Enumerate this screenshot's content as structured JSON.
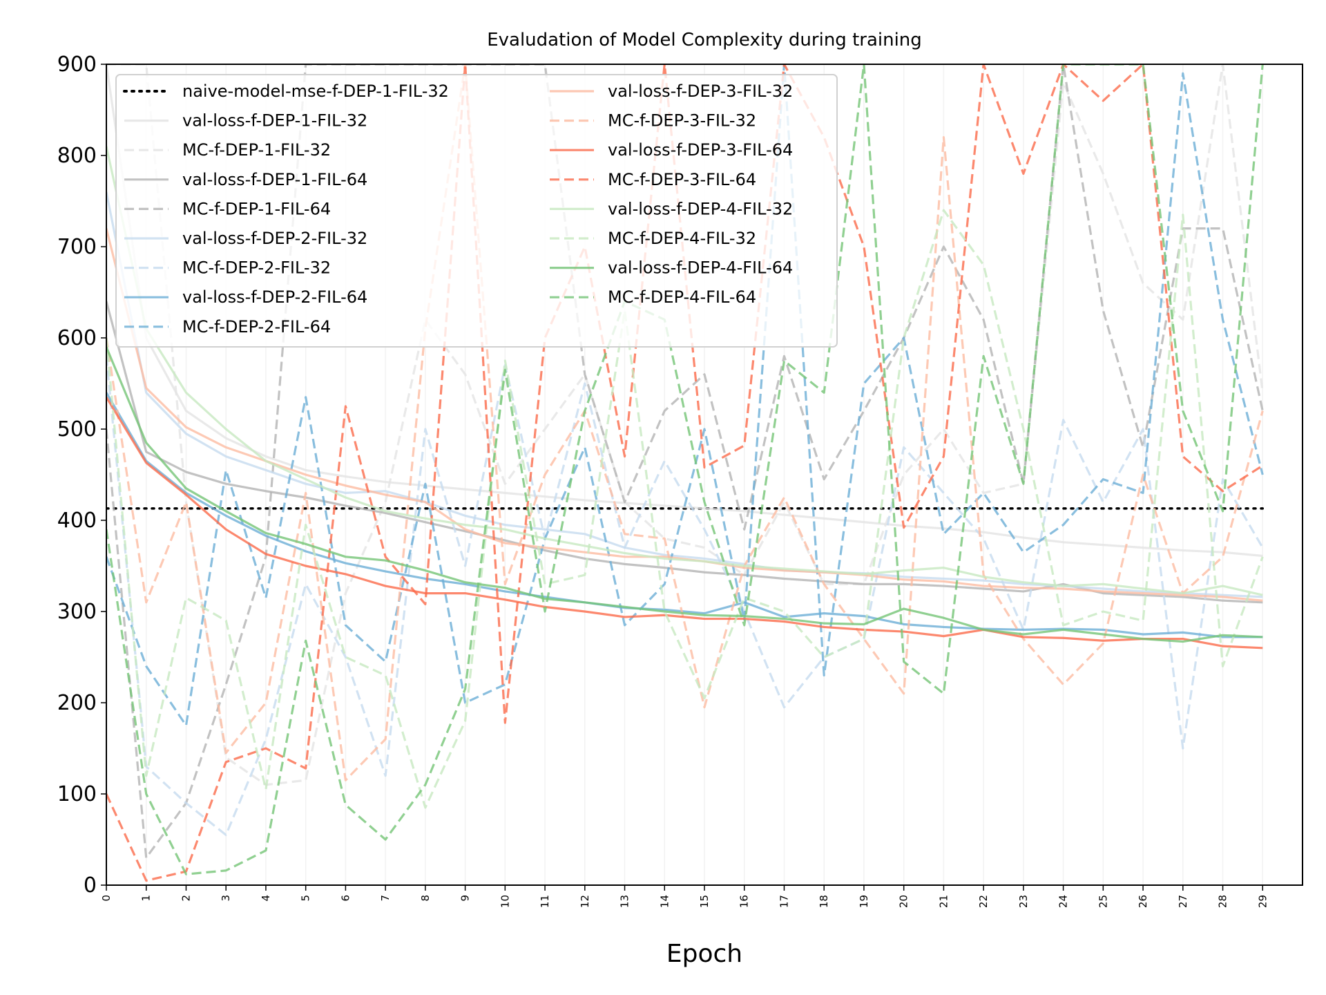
{
  "chart_data": {
    "type": "line",
    "title": "Evaludation of Model Complexity during training",
    "xlabel": "Epoch",
    "ylabel": "",
    "xlim": [
      0,
      30
    ],
    "ylim": [
      0,
      900
    ],
    "yticks": [
      0,
      100,
      200,
      300,
      400,
      500,
      600,
      700,
      800,
      900
    ],
    "xticks": [
      0,
      1,
      2,
      3,
      4,
      5,
      6,
      7,
      8,
      9,
      10,
      11,
      12,
      13,
      14,
      15,
      16,
      17,
      18,
      19,
      20,
      21,
      22,
      23,
      24,
      25,
      26,
      27,
      28,
      29
    ],
    "grid": "vertical-faint",
    "legend_position": "top-left",
    "x": [
      0,
      1,
      2,
      3,
      4,
      5,
      6,
      7,
      8,
      9,
      10,
      11,
      12,
      13,
      14,
      15,
      16,
      17,
      18,
      19,
      20,
      21,
      22,
      23,
      24,
      25,
      26,
      27,
      28,
      29
    ],
    "series": [
      {
        "name": "naive-model-mse-f-DEP-1-FIL-32",
        "color": "#000000",
        "style": "dotted",
        "values": [
          413,
          413,
          413,
          413,
          413,
          413,
          413,
          413,
          413,
          413,
          413,
          413,
          413,
          413,
          413,
          413,
          413,
          413,
          413,
          413,
          413,
          413,
          413,
          413,
          413,
          413,
          413,
          413,
          413,
          413
        ]
      },
      {
        "name": "val-loss-f-DEP-1-FIL-32",
        "color": "#e3e3e3",
        "style": "solid",
        "values": [
          900,
          600,
          520,
          490,
          470,
          455,
          448,
          442,
          438,
          434,
          430,
          426,
          422,
          419,
          416,
          413,
          410,
          406,
          402,
          398,
          394,
          391,
          387,
          381,
          376,
          373,
          370,
          367,
          365,
          361
        ]
      },
      {
        "name": "MC-f-DEP-1-FIL-32",
        "color": "#e3e3e3",
        "style": "dashed",
        "values": [
          900,
          900,
          420,
          140,
          110,
          115,
          320,
          420,
          620,
          560,
          440,
          500,
          560,
          420,
          380,
          370,
          340,
          420,
          330,
          330,
          450,
          500,
          430,
          440,
          880,
          780,
          660,
          620,
          900,
          540
        ]
      },
      {
        "name": "val-loss-f-DEP-1-FIL-64",
        "color": "#b3b3b3",
        "style": "solid",
        "values": [
          640,
          475,
          453,
          440,
          432,
          425,
          416,
          408,
          398,
          388,
          378,
          367,
          358,
          352,
          348,
          343,
          340,
          336,
          333,
          330,
          330,
          328,
          325,
          322,
          330,
          320,
          318,
          316,
          312,
          310
        ]
      },
      {
        "name": "MC-f-DEP-1-FIL-64",
        "color": "#b3b3b3",
        "style": "dashed",
        "values": [
          500,
          30,
          90,
          220,
          360,
          900,
          900,
          900,
          900,
          900,
          900,
          900,
          560,
          420,
          520,
          560,
          390,
          580,
          445,
          520,
          600,
          700,
          620,
          440,
          900,
          630,
          480,
          720,
          720,
          520
        ]
      },
      {
        "name": "val-loss-f-DEP-2-FIL-32",
        "color": "#c6dbef",
        "style": "solid",
        "values": [
          760,
          540,
          495,
          470,
          455,
          440,
          430,
          432,
          420,
          405,
          395,
          390,
          385,
          370,
          362,
          358,
          352,
          345,
          343,
          342,
          338,
          336,
          334,
          330,
          328,
          325,
          322,
          320,
          318,
          316
        ]
      },
      {
        "name": "MC-f-DEP-2-FIL-32",
        "color": "#c6dbef",
        "style": "dashed",
        "values": [
          580,
          130,
          90,
          55,
          160,
          330,
          250,
          120,
          500,
          350,
          570,
          380,
          550,
          370,
          465,
          390,
          300,
          195,
          250,
          270,
          480,
          430,
          380,
          280,
          510,
          420,
          500,
          150,
          445,
          370
        ]
      },
      {
        "name": "val-loss-f-DEP-2-FIL-64",
        "color": "#6baed6",
        "style": "solid",
        "values": [
          540,
          465,
          430,
          405,
          383,
          366,
          353,
          344,
          336,
          330,
          322,
          316,
          310,
          304,
          302,
          298,
          310,
          294,
          298,
          295,
          286,
          283,
          281,
          280,
          281,
          280,
          275,
          277,
          272,
          272
        ]
      },
      {
        "name": "MC-f-DEP-2-FIL-64",
        "color": "#6baed6",
        "style": "dashed",
        "values": [
          360,
          240,
          175,
          455,
          315,
          535,
          285,
          245,
          440,
          200,
          220,
          380,
          480,
          285,
          330,
          500,
          290,
          900,
          230,
          550,
          600,
          385,
          430,
          365,
          395,
          445,
          430,
          890,
          620,
          450
        ]
      },
      {
        "name": "val-loss-f-DEP-3-FIL-32",
        "color": "#fcbba1",
        "style": "solid",
        "values": [
          720,
          545,
          502,
          480,
          465,
          450,
          438,
          428,
          420,
          390,
          375,
          370,
          365,
          360,
          360,
          355,
          348,
          345,
          343,
          340,
          335,
          333,
          328,
          326,
          325,
          322,
          320,
          318,
          316,
          312
        ]
      },
      {
        "name": "MC-f-DEP-3-FIL-32",
        "color": "#fcbba1",
        "style": "dashed",
        "values": [
          600,
          310,
          420,
          145,
          200,
          430,
          115,
          160,
          610,
          900,
          330,
          450,
          520,
          385,
          380,
          195,
          350,
          425,
          330,
          270,
          210,
          820,
          340,
          270,
          220,
          265,
          450,
          320,
          360,
          520
        ]
      },
      {
        "name": "val-loss-f-DEP-3-FIL-64",
        "color": "#fb6a4a",
        "style": "solid",
        "values": [
          535,
          463,
          428,
          390,
          363,
          350,
          341,
          328,
          320,
          320,
          313,
          305,
          300,
          294,
          296,
          292,
          292,
          289,
          283,
          280,
          278,
          273,
          280,
          272,
          271,
          268,
          270,
          270,
          262,
          260
        ]
      },
      {
        "name": "MC-f-DEP-3-FIL-64",
        "color": "#fb6a4a",
        "style": "dashed",
        "values": [
          100,
          5,
          15,
          135,
          150,
          128,
          525,
          360,
          308,
          900,
          178,
          600,
          700,
          470,
          900,
          458,
          482,
          900,
          820,
          700,
          392,
          470,
          900,
          780,
          900,
          860,
          900,
          470,
          432,
          460
        ]
      },
      {
        "name": "val-loss-f-DEP-4-FIL-32",
        "color": "#c7e9c0",
        "style": "solid",
        "values": [
          810,
          610,
          540,
          500,
          465,
          445,
          425,
          410,
          402,
          395,
          390,
          380,
          372,
          364,
          358,
          355,
          350,
          347,
          344,
          341,
          345,
          348,
          338,
          332,
          328,
          330,
          325,
          320,
          328,
          318
        ]
      },
      {
        "name": "MC-f-DEP-4-FIL-32",
        "color": "#c7e9c0",
        "style": "dashed",
        "values": [
          600,
          120,
          315,
          290,
          105,
          395,
          250,
          230,
          85,
          180,
          575,
          330,
          340,
          630,
          300,
          205,
          315,
          300,
          250,
          270,
          600,
          740,
          680,
          500,
          285,
          300,
          290,
          735,
          240,
          360
        ]
      },
      {
        "name": "val-loss-f-DEP-4-FIL-64",
        "color": "#74c476",
        "style": "solid",
        "values": [
          590,
          485,
          435,
          410,
          386,
          374,
          360,
          356,
          345,
          332,
          326,
          314,
          310,
          305,
          300,
          296,
          295,
          292,
          287,
          286,
          303,
          293,
          280,
          275,
          280,
          275,
          270,
          267,
          274,
          272
        ]
      },
      {
        "name": "MC-f-DEP-4-FIL-64",
        "color": "#74c476",
        "style": "dashed",
        "values": [
          390,
          100,
          12,
          16,
          38,
          268,
          88,
          50,
          110,
          215,
          565,
          300,
          520,
          640,
          620,
          420,
          285,
          575,
          540,
          900,
          245,
          210,
          580,
          440,
          900,
          900,
          900,
          520,
          410,
          900
        ]
      }
    ]
  }
}
